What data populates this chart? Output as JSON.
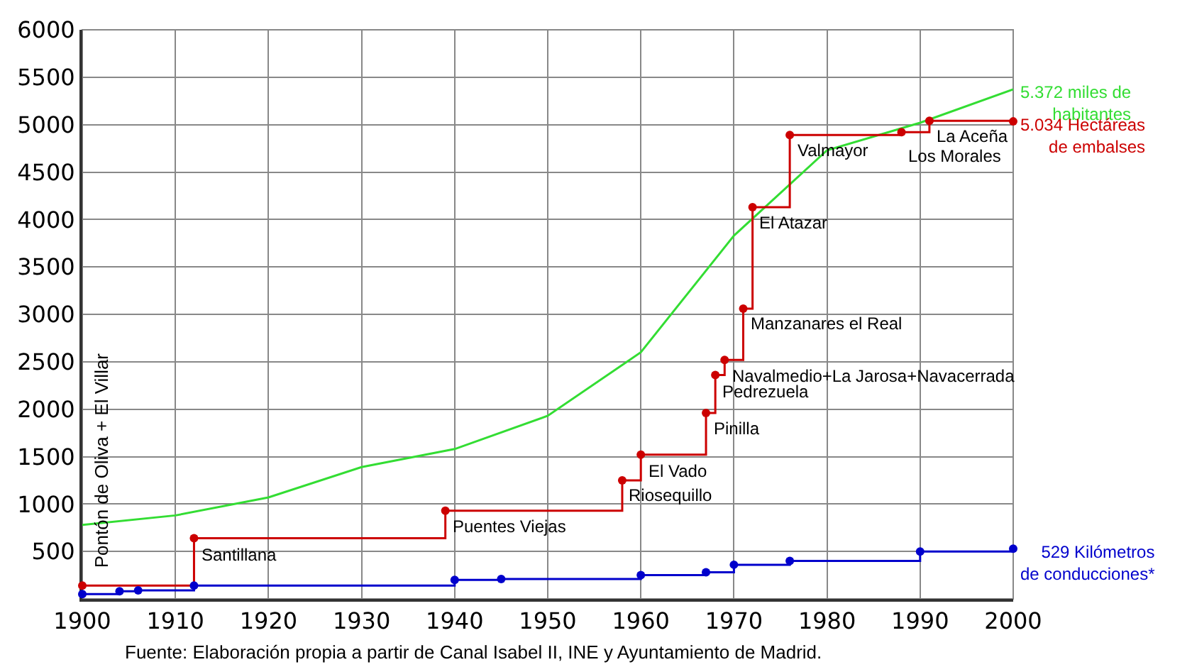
{
  "chart_data": {
    "type": "step",
    "series": [
      {
        "type": "line",
        "color": "#33dd33",
        "marker": "none",
        "x": [
          1900,
          1910,
          1920,
          1930,
          1940,
          1950,
          1960,
          1970,
          1980,
          1990,
          2000
        ],
        "values": [
          780,
          880,
          1070,
          1390,
          1580,
          1930,
          2600,
          3830,
          4730,
          5020,
          5372
        ]
      },
      {
        "color": "#cc0000",
        "marker": "circle",
        "x": [
          1900,
          1912,
          1939,
          1958,
          1960,
          1967,
          1968,
          1969,
          1971,
          1972,
          1976,
          1988,
          1991,
          2000
        ],
        "values": [
          140,
          640,
          930,
          1250,
          1520,
          1960,
          2360,
          2520,
          3060,
          4130,
          4890,
          4920,
          5040,
          5034
        ]
      },
      {
        "color": "#0000cc",
        "marker": "circle",
        "x": [
          1900,
          1904,
          1906,
          1912,
          1940,
          1945,
          1960,
          1967,
          1970,
          1976,
          1990,
          2000
        ],
        "values": [
          50,
          80,
          90,
          140,
          200,
          210,
          250,
          280,
          360,
          400,
          500,
          529
        ]
      }
    ],
    "xlim": [
      1900,
      2000
    ],
    "xticks": [
      1900,
      1910,
      1920,
      1930,
      1940,
      1950,
      1960,
      1970,
      1980,
      1990,
      2000
    ],
    "ylim": [
      0,
      6000
    ],
    "yticks": [
      500,
      1000,
      1500,
      2000,
      2500,
      3000,
      3500,
      4000,
      4500,
      5000,
      5500,
      6000
    ],
    "grid": true,
    "annotations": [
      {
        "text": "Pontón de Oliva + El Villar",
        "x": 1900,
        "y": 140
      },
      {
        "text": "Santillana",
        "x": 1912,
        "y": 635
      },
      {
        "text": "Puentes Viejas",
        "x": 1939,
        "y": 925
      },
      {
        "text": "Riosequillo",
        "x": 1958,
        "y": 1254
      },
      {
        "text": "El Vado",
        "x": 1960,
        "y": 1515
      },
      {
        "text": "Pinilla",
        "x": 1967,
        "y": 1960
      },
      {
        "text": "Pedrezuela",
        "x": 1968,
        "y": 2355
      },
      {
        "text": "Navalmedio+La Jarosa+Navacerrada",
        "x": 1969,
        "y": 2519
      },
      {
        "text": "Manzanares el Real",
        "x": 1971,
        "y": 3060
      },
      {
        "text": "El Atazar",
        "x": 1972,
        "y": 4133
      },
      {
        "text": "Valmayor",
        "x": 1976,
        "y": 4887
      },
      {
        "text": "Los Morales",
        "x": 1988,
        "y": 4920
      },
      {
        "text": "La Aceña",
        "x": 1991,
        "y": 5040
      },
      {
        "text": "5.372 miles de\nhabitantes",
        "x": 2000,
        "y": 5372
      },
      {
        "text": "5.034 Hectáreas\nde embalses",
        "x": 2000,
        "y": 5034
      },
      {
        "text": "529 Kilómetros\nde conducciones*",
        "x": 2000,
        "y": 529
      },
      "Fuente: Elaboración propia a partir de Canal Isabel II, INE y Ayuntamiento de Madrid."
    ]
  }
}
